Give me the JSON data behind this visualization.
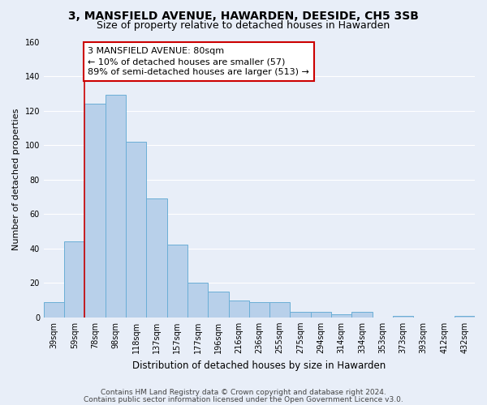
{
  "title": "3, MANSFIELD AVENUE, HAWARDEN, DEESIDE, CH5 3SB",
  "subtitle": "Size of property relative to detached houses in Hawarden",
  "xlabel": "Distribution of detached houses by size in Hawarden",
  "ylabel": "Number of detached properties",
  "bar_labels": [
    "39sqm",
    "59sqm",
    "78sqm",
    "98sqm",
    "118sqm",
    "137sqm",
    "157sqm",
    "177sqm",
    "196sqm",
    "216sqm",
    "236sqm",
    "255sqm",
    "275sqm",
    "294sqm",
    "314sqm",
    "334sqm",
    "353sqm",
    "373sqm",
    "393sqm",
    "412sqm",
    "432sqm"
  ],
  "bar_values": [
    9,
    44,
    124,
    129,
    102,
    69,
    42,
    20,
    15,
    10,
    9,
    9,
    3,
    3,
    2,
    3,
    0,
    1,
    0,
    0,
    1
  ],
  "bar_color": "#b8d0ea",
  "bar_edge_color": "#6aaed6",
  "ylim": [
    0,
    160
  ],
  "yticks": [
    0,
    20,
    40,
    60,
    80,
    100,
    120,
    140,
    160
  ],
  "annotation_text": "3 MANSFIELD AVENUE: 80sqm\n← 10% of detached houses are smaller (57)\n89% of semi-detached houses are larger (513) →",
  "annotation_box_color": "#ffffff",
  "annotation_box_edge_color": "#cc0000",
  "red_line_color": "#cc0000",
  "red_line_bar_index": 2,
  "footer_line1": "Contains HM Land Registry data © Crown copyright and database right 2024.",
  "footer_line2": "Contains public sector information licensed under the Open Government Licence v3.0.",
  "background_color": "#e8eef8",
  "plot_bg_color": "#e8eef8",
  "grid_color": "#ffffff",
  "title_fontsize": 10,
  "subtitle_fontsize": 9,
  "xlabel_fontsize": 8.5,
  "ylabel_fontsize": 8,
  "tick_fontsize": 7,
  "annot_fontsize": 8,
  "footer_fontsize": 6.5
}
